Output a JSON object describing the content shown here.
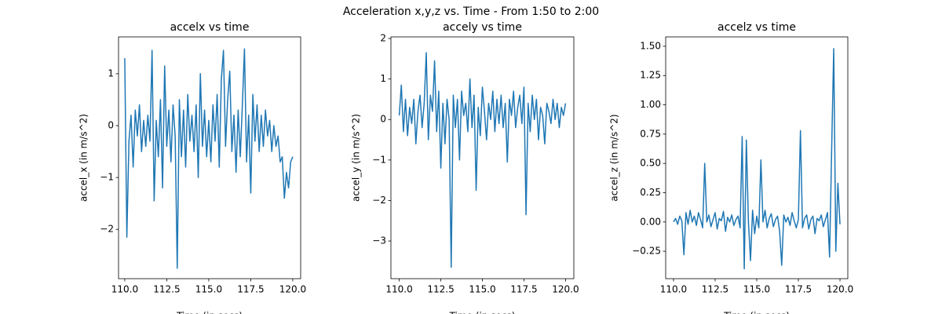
{
  "title": "Acceleration x,y,z vs. Time - From 1:50 to 2:00",
  "chart_data": [
    {
      "type": "line",
      "title": "accelx vs time",
      "xlabel": "Time (in secs)",
      "ylabel": "accel_x (in m/s^2)",
      "x": [
        110,
        110.125,
        110.25,
        110.375,
        110.5,
        110.625,
        110.75,
        110.875,
        111,
        111.125,
        111.25,
        111.375,
        111.5,
        111.625,
        111.75,
        111.875,
        112,
        112.125,
        112.25,
        112.375,
        112.5,
        112.625,
        112.75,
        112.875,
        113,
        113.125,
        113.25,
        113.375,
        113.5,
        113.625,
        113.75,
        113.875,
        114,
        114.125,
        114.25,
        114.375,
        114.5,
        114.625,
        114.75,
        114.875,
        115,
        115.125,
        115.25,
        115.375,
        115.5,
        115.625,
        115.75,
        115.875,
        116,
        116.125,
        116.25,
        116.375,
        116.5,
        116.625,
        116.75,
        116.875,
        117,
        117.125,
        117.25,
        117.375,
        117.5,
        117.625,
        117.75,
        117.875,
        118,
        118.125,
        118.25,
        118.375,
        118.5,
        118.625,
        118.75,
        118.875,
        119,
        119.125,
        119.25,
        119.375,
        119.5,
        119.625,
        119.75,
        119.875,
        120
      ],
      "series": [
        {
          "color": "#1f77b4",
          "values": [
            1.3,
            -2.15,
            -0.3,
            0.2,
            -0.8,
            0.3,
            -0.2,
            0.4,
            -0.5,
            0.1,
            -0.4,
            0.2,
            -0.3,
            1.45,
            -1.45,
            0.1,
            -0.6,
            0.5,
            -1.2,
            1.15,
            -0.4,
            0.3,
            -0.7,
            0.4,
            -0.2,
            -2.75,
            0.5,
            -0.6,
            0.3,
            -0.8,
            0.6,
            -0.3,
            0.2,
            -0.5,
            0.4,
            -1.0,
            1.0,
            -0.4,
            0.3,
            -0.6,
            0.1,
            -0.7,
            0.4,
            -0.3,
            0.6,
            -0.8,
            0.9,
            1.45,
            -0.4,
            0.5,
            1.05,
            -0.5,
            0.2,
            -0.9,
            0.3,
            -0.6,
            0.4,
            1.48,
            -0.7,
            0.2,
            -1.3,
            0.6,
            -0.3,
            0.4,
            -0.5,
            0.2,
            -0.4,
            0.3,
            -0.2,
            0.1,
            -0.5,
            0.0,
            -0.4,
            -0.2,
            -0.7,
            -0.6,
            -1.4,
            -0.9,
            -1.2,
            -0.7,
            -0.6
          ]
        }
      ],
      "xlim": [
        109.63,
        120.47
      ],
      "xticks": [
        {
          "value": 110,
          "label": "110.0"
        },
        112.5,
        {
          "value": 115,
          "label": "115.0"
        },
        117.5,
        {
          "value": 120,
          "label": "120.0"
        }
      ],
      "ylim": [
        -2.95,
        1.71
      ],
      "yticks": [
        {
          "value": -2,
          "label": "−2"
        },
        {
          "value": -1,
          "label": "−1"
        },
        0,
        1
      ]
    },
    {
      "type": "line",
      "title": "accely vs time",
      "xlabel": "Time (in secs)",
      "ylabel": "accel_y (in m/s^2)",
      "x": [
        110,
        110.125,
        110.25,
        110.375,
        110.5,
        110.625,
        110.75,
        110.875,
        111,
        111.125,
        111.25,
        111.375,
        111.5,
        111.625,
        111.75,
        111.875,
        112,
        112.125,
        112.25,
        112.375,
        112.5,
        112.625,
        112.75,
        112.875,
        113,
        113.125,
        113.25,
        113.375,
        113.5,
        113.625,
        113.75,
        113.875,
        114,
        114.125,
        114.25,
        114.375,
        114.5,
        114.625,
        114.75,
        114.875,
        115,
        115.125,
        115.25,
        115.375,
        115.5,
        115.625,
        115.75,
        115.875,
        116,
        116.125,
        116.25,
        116.375,
        116.5,
        116.625,
        116.75,
        116.875,
        117,
        117.125,
        117.25,
        117.375,
        117.5,
        117.625,
        117.75,
        117.875,
        118,
        118.125,
        118.25,
        118.375,
        118.5,
        118.625,
        118.75,
        118.875,
        119,
        119.125,
        119.25,
        119.375,
        119.5,
        119.625,
        119.75,
        119.875,
        120
      ],
      "series": [
        {
          "color": "#1f77b4",
          "values": [
            0.1,
            0.85,
            -0.3,
            0.5,
            -0.4,
            0.3,
            -0.1,
            0.5,
            -0.6,
            0.2,
            0.6,
            -0.2,
            0.4,
            1.65,
            -0.5,
            0.6,
            0.2,
            1.45,
            -0.3,
            0.7,
            -1.2,
            0.4,
            -0.6,
            0.5,
            0.0,
            -3.65,
            0.6,
            -0.2,
            0.5,
            -1.0,
            0.7,
            0.1,
            0.4,
            -0.3,
            1.0,
            -0.2,
            0.6,
            -1.75,
            0.3,
            -0.4,
            0.8,
            0.2,
            -0.5,
            0.4,
            0.0,
            0.7,
            -0.3,
            0.5,
            -0.1,
            0.6,
            -0.2,
            0.4,
            -1.05,
            0.5,
            0.1,
            0.7,
            -0.2,
            0.3,
            0.6,
            -0.1,
            0.8,
            -2.35,
            0.4,
            -0.3,
            0.6,
            0.0,
            0.5,
            -0.5,
            0.3,
            0.1,
            -0.6,
            0.4,
            0.2,
            -0.1,
            0.5,
            0.0,
            0.4,
            -0.2,
            0.3,
            0.1,
            0.4
          ]
        }
      ],
      "xlim": [
        109.5,
        120.5
      ],
      "xticks": [
        {
          "value": 110,
          "label": "110.0"
        },
        112.5,
        {
          "value": 115,
          "label": "115.0"
        },
        117.5,
        {
          "value": 120,
          "label": "120.0"
        }
      ],
      "ylim": [
        -3.93,
        2.04
      ],
      "yticks": [
        {
          "value": -3,
          "label": "−3"
        },
        {
          "value": -2,
          "label": "−2"
        },
        {
          "value": -1,
          "label": "−1"
        },
        0,
        1,
        2
      ]
    },
    {
      "type": "line",
      "title": "accelz vs time",
      "xlabel": "Time (in secs)",
      "ylabel": "accel_z (in m/s^2)",
      "x": [
        110,
        110.125,
        110.25,
        110.375,
        110.5,
        110.625,
        110.75,
        110.875,
        111,
        111.125,
        111.25,
        111.375,
        111.5,
        111.625,
        111.75,
        111.875,
        112,
        112.125,
        112.25,
        112.375,
        112.5,
        112.625,
        112.75,
        112.875,
        113,
        113.125,
        113.25,
        113.375,
        113.5,
        113.625,
        113.75,
        113.875,
        114,
        114.125,
        114.25,
        114.375,
        114.5,
        114.625,
        114.75,
        114.875,
        115,
        115.125,
        115.25,
        115.375,
        115.5,
        115.625,
        115.75,
        115.875,
        116,
        116.125,
        116.25,
        116.375,
        116.5,
        116.625,
        116.75,
        116.875,
        117,
        117.125,
        117.25,
        117.375,
        117.5,
        117.625,
        117.75,
        117.875,
        118,
        118.125,
        118.25,
        118.375,
        118.5,
        118.625,
        118.75,
        118.875,
        119,
        119.125,
        119.25,
        119.375,
        119.5,
        119.625,
        119.75,
        119.875,
        120
      ],
      "series": [
        {
          "color": "#1f77b4",
          "values": [
            0.0,
            0.03,
            -0.02,
            0.05,
            0.01,
            -0.28,
            0.08,
            -0.02,
            0.1,
            0.0,
            0.05,
            -0.03,
            0.08,
            0.02,
            -0.05,
            0.5,
            0.0,
            0.06,
            -0.04,
            0.02,
            0.08,
            -0.06,
            0.03,
            0.01,
            0.09,
            -0.08,
            0.04,
            0.0,
            0.06,
            -0.03,
            0.02,
            0.05,
            -0.05,
            0.73,
            -0.4,
            0.7,
            0.0,
            -0.33,
            0.1,
            -0.1,
            0.05,
            -0.05,
            0.53,
            0.0,
            0.1,
            -0.05,
            0.03,
            0.07,
            -0.04,
            0.02,
            0.05,
            -0.08,
            -0.37,
            0.06,
            0.0,
            0.04,
            -0.03,
            0.08,
            0.01,
            -0.05,
            0.02,
            0.78,
            -0.05,
            0.03,
            0.06,
            -0.06,
            0.02,
            0.05,
            -0.1,
            0.03,
            0.01,
            0.06,
            -0.04,
            0.02,
            0.08,
            -0.3,
            0.62,
            1.48,
            -0.25,
            0.33,
            -0.02
          ]
        }
      ],
      "xlim": [
        109.53,
        120.47
      ],
      "xticks": [
        {
          "value": 110,
          "label": "110.0"
        },
        112.5,
        {
          "value": 115,
          "label": "115.0"
        },
        117.5,
        {
          "value": 120,
          "label": "120.0"
        }
      ],
      "ylim": [
        -0.484,
        1.58
      ],
      "yticks": [
        {
          "value": -0.25,
          "label": "−0.25"
        },
        {
          "value": 0,
          "label": "0.00"
        },
        {
          "value": 0.25,
          "label": "0.25"
        },
        {
          "value": 0.5,
          "label": "0.50"
        },
        {
          "value": 0.75,
          "label": "0.75"
        },
        {
          "value": 1,
          "label": "1.00"
        },
        {
          "value": 1.25,
          "label": "1.25"
        },
        {
          "value": 1.5,
          "label": "1.50"
        }
      ]
    }
  ]
}
